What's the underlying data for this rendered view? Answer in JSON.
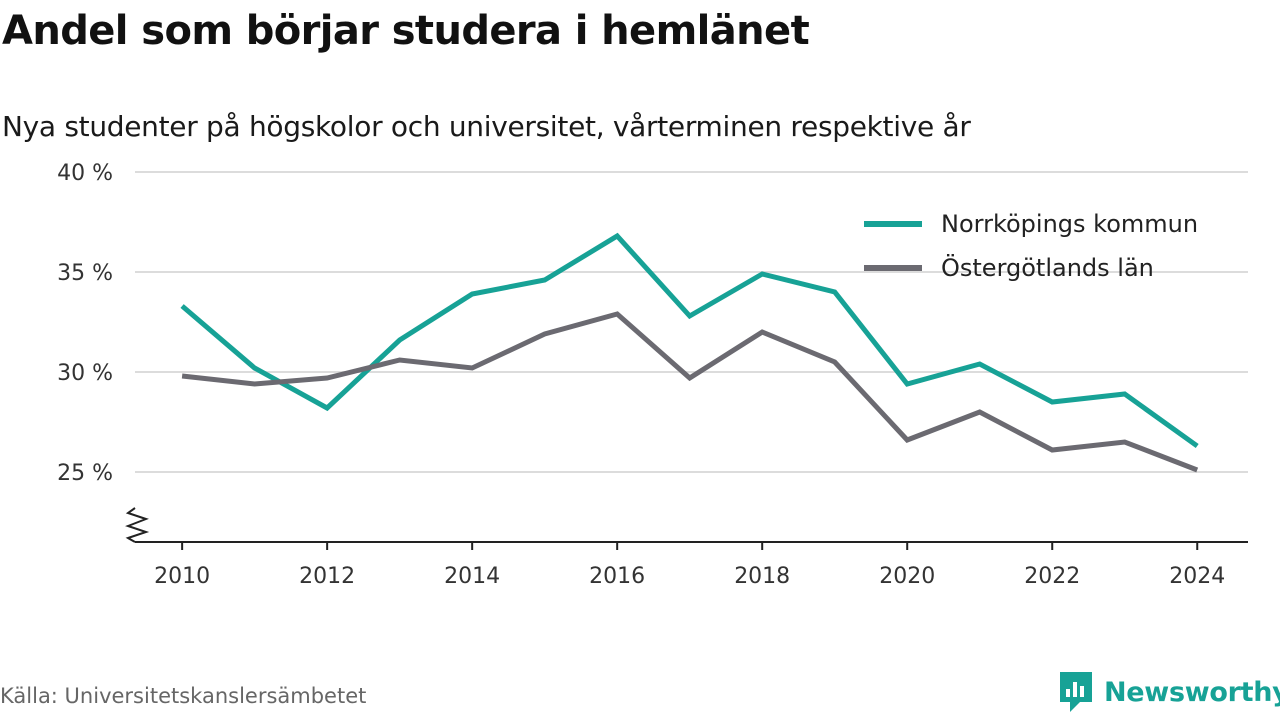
{
  "title": "Andel som börjar studera i hemlänet",
  "subtitle": "Nya studenter på högskolor och universitet, vårterminen respektive år",
  "source": "Källa: Universitetskanslersämbetet",
  "brand": {
    "name": "Newsworthy",
    "color": "#17a296"
  },
  "chart_data": {
    "type": "line",
    "x": [
      2010,
      2011,
      2012,
      2013,
      2014,
      2015,
      2016,
      2017,
      2018,
      2019,
      2020,
      2021,
      2022,
      2023,
      2024
    ],
    "series": [
      {
        "name": "Norrköpings kommun",
        "color": "#17a296",
        "values": [
          33.3,
          30.2,
          28.2,
          31.6,
          33.9,
          34.6,
          36.8,
          32.8,
          34.9,
          34.0,
          29.4,
          30.4,
          28.5,
          28.9,
          26.3
        ]
      },
      {
        "name": "Östergötlands län",
        "color": "#6b6a71",
        "values": [
          29.8,
          29.4,
          29.7,
          30.6,
          30.2,
          31.9,
          32.9,
          29.7,
          32.0,
          30.5,
          26.6,
          28.0,
          26.1,
          26.5,
          25.1
        ]
      }
    ],
    "y_ticks": [
      25,
      30,
      35,
      40
    ],
    "y_tick_labels": [
      "25 %",
      "30 %",
      "35 %",
      "40 %"
    ],
    "x_ticks": [
      2010,
      2012,
      2014,
      2016,
      2018,
      2020,
      2022,
      2024
    ],
    "x_tick_labels": [
      "2010",
      "2012",
      "2014",
      "2016",
      "2018",
      "2020",
      "2022",
      "2024"
    ],
    "ylim": [
      21.5,
      40
    ],
    "xlim": [
      2009.35,
      2024.7
    ],
    "y_axis_break": true,
    "grid": true,
    "legend_position": "top-right"
  }
}
